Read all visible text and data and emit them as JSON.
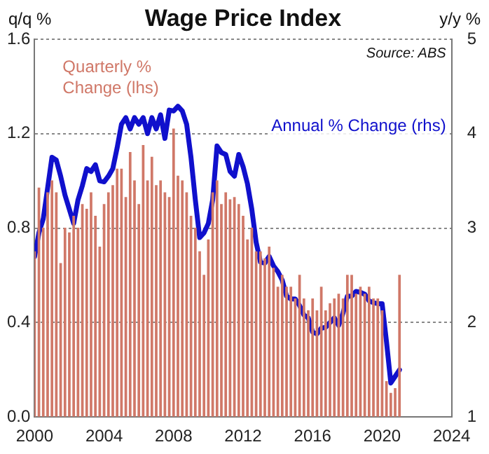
{
  "chart_data": {
    "type": "bar",
    "title": "Wage Price Index",
    "ylabel": "q/q %",
    "y2label": "y/y %",
    "annotations": [
      "Source: ABS"
    ],
    "xlim": [
      2000,
      2024
    ],
    "xticks": [
      2000,
      2004,
      2008,
      2012,
      2016,
      2020,
      2024
    ],
    "ylim": [
      0,
      1.6
    ],
    "yticks": [
      {
        "value": 0,
        "label": "0.0"
      },
      0.4,
      0.8,
      1.2,
      1.6
    ],
    "y2lim": [
      1,
      5
    ],
    "y2ticks": [
      1,
      2,
      3,
      4,
      5
    ],
    "grid": "y",
    "legend": false,
    "series": [
      {
        "name": "Quarterly % Change (lhs)",
        "color": "#d07868",
        "x": [
          2000,
          2000.25,
          2000.5,
          2000.75,
          2001,
          2001.25,
          2001.5,
          2001.75,
          2002,
          2002.25,
          2002.5,
          2002.75,
          2003,
          2003.25,
          2003.5,
          2003.75,
          2004,
          2004.25,
          2004.5,
          2004.75,
          2005,
          2005.25,
          2005.5,
          2005.75,
          2006,
          2006.25,
          2006.5,
          2006.75,
          2007,
          2007.25,
          2007.5,
          2007.75,
          2008,
          2008.25,
          2008.5,
          2008.75,
          2009,
          2009.25,
          2009.5,
          2009.75,
          2010,
          2010.25,
          2010.5,
          2010.75,
          2011,
          2011.25,
          2011.5,
          2011.75,
          2012,
          2012.25,
          2012.5,
          2012.75,
          2013,
          2013.25,
          2013.5,
          2013.75,
          2014,
          2014.25,
          2014.5,
          2014.75,
          2015,
          2015.25,
          2015.5,
          2015.75,
          2016,
          2016.25,
          2016.5,
          2016.75,
          2017,
          2017.25,
          2017.5,
          2017.75,
          2018,
          2018.25,
          2018.5,
          2018.75,
          2019,
          2019.25,
          2019.5,
          2019.75,
          2020,
          2020.25,
          2020.5,
          2020.75,
          2021
        ],
        "values": [
          0.7,
          0.97,
          0.8,
          0.95,
          1.0,
          0.95,
          0.65,
          0.8,
          0.78,
          0.85,
          0.8,
          0.9,
          0.88,
          0.95,
          0.85,
          0.72,
          0.9,
          0.95,
          0.98,
          1.05,
          1.05,
          0.93,
          1.12,
          1.0,
          0.9,
          1.15,
          1.0,
          1.1,
          0.98,
          1.0,
          0.95,
          0.93,
          1.22,
          1.02,
          1.0,
          0.95,
          0.85,
          0.8,
          0.7,
          0.6,
          0.75,
          0.95,
          1.0,
          0.9,
          0.95,
          0.92,
          0.93,
          0.9,
          0.85,
          0.75,
          0.8,
          0.7,
          0.7,
          0.67,
          0.72,
          0.63,
          0.55,
          0.6,
          0.55,
          0.55,
          0.5,
          0.6,
          0.5,
          0.45,
          0.5,
          0.45,
          0.55,
          0.45,
          0.48,
          0.5,
          0.52,
          0.5,
          0.6,
          0.6,
          0.52,
          0.55,
          0.52,
          0.55,
          0.5,
          0.5,
          0.45,
          0.15,
          0.1,
          0.12,
          0.6
        ]
      },
      {
        "name": "Annual % Change (rhs)",
        "type": "line",
        "axis": "y2",
        "color": "#1010cc",
        "marker": "none",
        "line_style": "solid",
        "x": [
          2000,
          2000.25,
          2000.5,
          2001,
          2001.25,
          2001.5,
          2001.75,
          2002.25,
          2002.5,
          2002.75,
          2003,
          2003.25,
          2003.5,
          2003.75,
          2004,
          2004.25,
          2004.5,
          2004.75,
          2005,
          2005.25,
          2005.5,
          2005.75,
          2006,
          2006.25,
          2006.5,
          2006.75,
          2007,
          2007.25,
          2007.5,
          2007.75,
          2008,
          2008.25,
          2008.5,
          2008.75,
          2009,
          2009.25,
          2009.5,
          2009.75,
          2010,
          2010.25,
          2010.5,
          2010.75,
          2011,
          2011.25,
          2011.5,
          2011.75,
          2012,
          2012.25,
          2012.5,
          2012.75,
          2013,
          2013.25,
          2013.5,
          2013.75,
          2014,
          2014.25,
          2014.5,
          2014.75,
          2015,
          2015.25,
          2015.5,
          2015.75,
          2016,
          2016.25,
          2016.5,
          2016.75,
          2017,
          2017.25,
          2017.5,
          2017.75,
          2018,
          2018.25,
          2018.5,
          2018.75,
          2019,
          2019.25,
          2019.5,
          2019.75,
          2020,
          2020.25,
          2020.5,
          2020.75,
          2021
        ],
        "values": [
          2.7,
          2.95,
          3.1,
          3.75,
          3.72,
          3.55,
          3.35,
          3.05,
          3.3,
          3.45,
          3.63,
          3.6,
          3.67,
          3.5,
          3.49,
          3.55,
          3.63,
          3.85,
          4.1,
          4.17,
          4.05,
          4.17,
          4.1,
          4.17,
          4.0,
          4.17,
          4.05,
          4.2,
          3.95,
          4.25,
          4.24,
          4.29,
          4.24,
          4.1,
          3.75,
          3.3,
          2.9,
          2.95,
          3.05,
          3.3,
          3.87,
          3.8,
          3.78,
          3.6,
          3.55,
          3.78,
          3.65,
          3.47,
          3.2,
          2.85,
          2.64,
          2.63,
          2.7,
          2.6,
          2.54,
          2.45,
          2.28,
          2.25,
          2.25,
          2.18,
          2.08,
          2.05,
          1.9,
          1.88,
          1.94,
          1.95,
          2.0,
          2.05,
          1.97,
          2.1,
          2.28,
          2.28,
          2.33,
          2.32,
          2.3,
          2.23,
          2.21,
          2.2,
          2.2,
          1.8,
          1.36,
          1.43,
          1.5
        ]
      }
    ]
  }
}
